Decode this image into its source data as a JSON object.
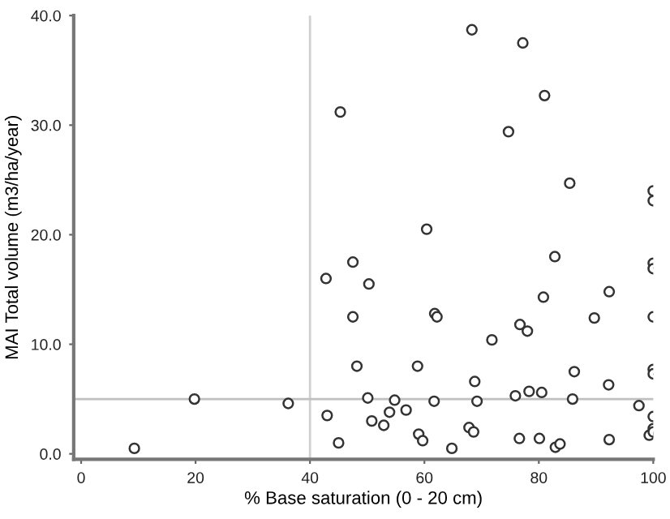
{
  "chart_data": {
    "type": "scatter",
    "xlabel": "% Base saturation (0 - 20 cm)",
    "ylabel": "MAI Total volume (m3/ha/year)",
    "xlim": [
      -1.3,
      100
    ],
    "xticks": [
      0,
      20,
      40,
      60,
      80,
      100
    ],
    "ylim": [
      -0.5,
      40
    ],
    "yticks": [
      {
        "value": 0,
        "label": "0.0"
      },
      {
        "value": 10,
        "label": "10.0"
      },
      {
        "value": 20,
        "label": "20.0"
      },
      {
        "value": 30,
        "label": "30.0"
      },
      {
        "value": 40,
        "label": "40.0"
      }
    ],
    "grid": false,
    "marker": "circle",
    "ref_lines": [
      {
        "axis": "x",
        "value": 40,
        "color": "#d0d0d0"
      },
      {
        "axis": "y",
        "value": 5,
        "color": "#c0c0c0"
      }
    ],
    "series": [
      {
        "color": "#333333",
        "x": [
          9.3,
          19.8,
          36.2,
          42.8,
          43.0,
          45.0,
          47.5,
          47.5,
          48.2,
          50.3,
          50.1,
          50.8,
          52.9,
          53.9,
          54.8,
          56.8,
          58.8,
          59.0,
          59.7,
          61.8,
          62.2,
          61.7,
          64.8,
          67.8,
          68.6,
          68.8,
          69.2,
          71.8,
          75.9,
          76.6,
          76.7,
          78.0,
          78.3,
          80.1,
          80.5,
          80.8,
          82.8,
          82.9,
          83.7,
          85.9,
          86.2,
          89.7,
          92.3,
          92.2,
          92.3,
          97.5,
          99.3,
          100,
          100,
          100,
          100,
          100,
          100,
          100,
          100,
          68.3,
          77.2,
          81.0,
          45.3,
          74.7,
          85.4,
          100,
          100,
          60.4
        ],
        "values": [
          0.5,
          5.0,
          4.6,
          16.0,
          3.5,
          1.0,
          17.5,
          12.5,
          8.0,
          15.5,
          5.1,
          3.0,
          2.6,
          3.8,
          4.9,
          4.0,
          8.0,
          1.8,
          1.2,
          12.8,
          12.5,
          4.8,
          0.5,
          2.4,
          2.0,
          6.6,
          4.8,
          10.4,
          5.3,
          1.4,
          11.8,
          11.2,
          5.7,
          1.4,
          5.6,
          14.3,
          18.0,
          0.6,
          0.9,
          5.0,
          7.5,
          12.4,
          14.8,
          6.3,
          1.3,
          4.4,
          1.7,
          17.4,
          16.9,
          12.5,
          7.7,
          7.3,
          3.4,
          2.3,
          2.0,
          38.7,
          37.5,
          32.7,
          31.2,
          29.4,
          24.7,
          24.0,
          23.1,
          20.5
        ]
      }
    ]
  }
}
